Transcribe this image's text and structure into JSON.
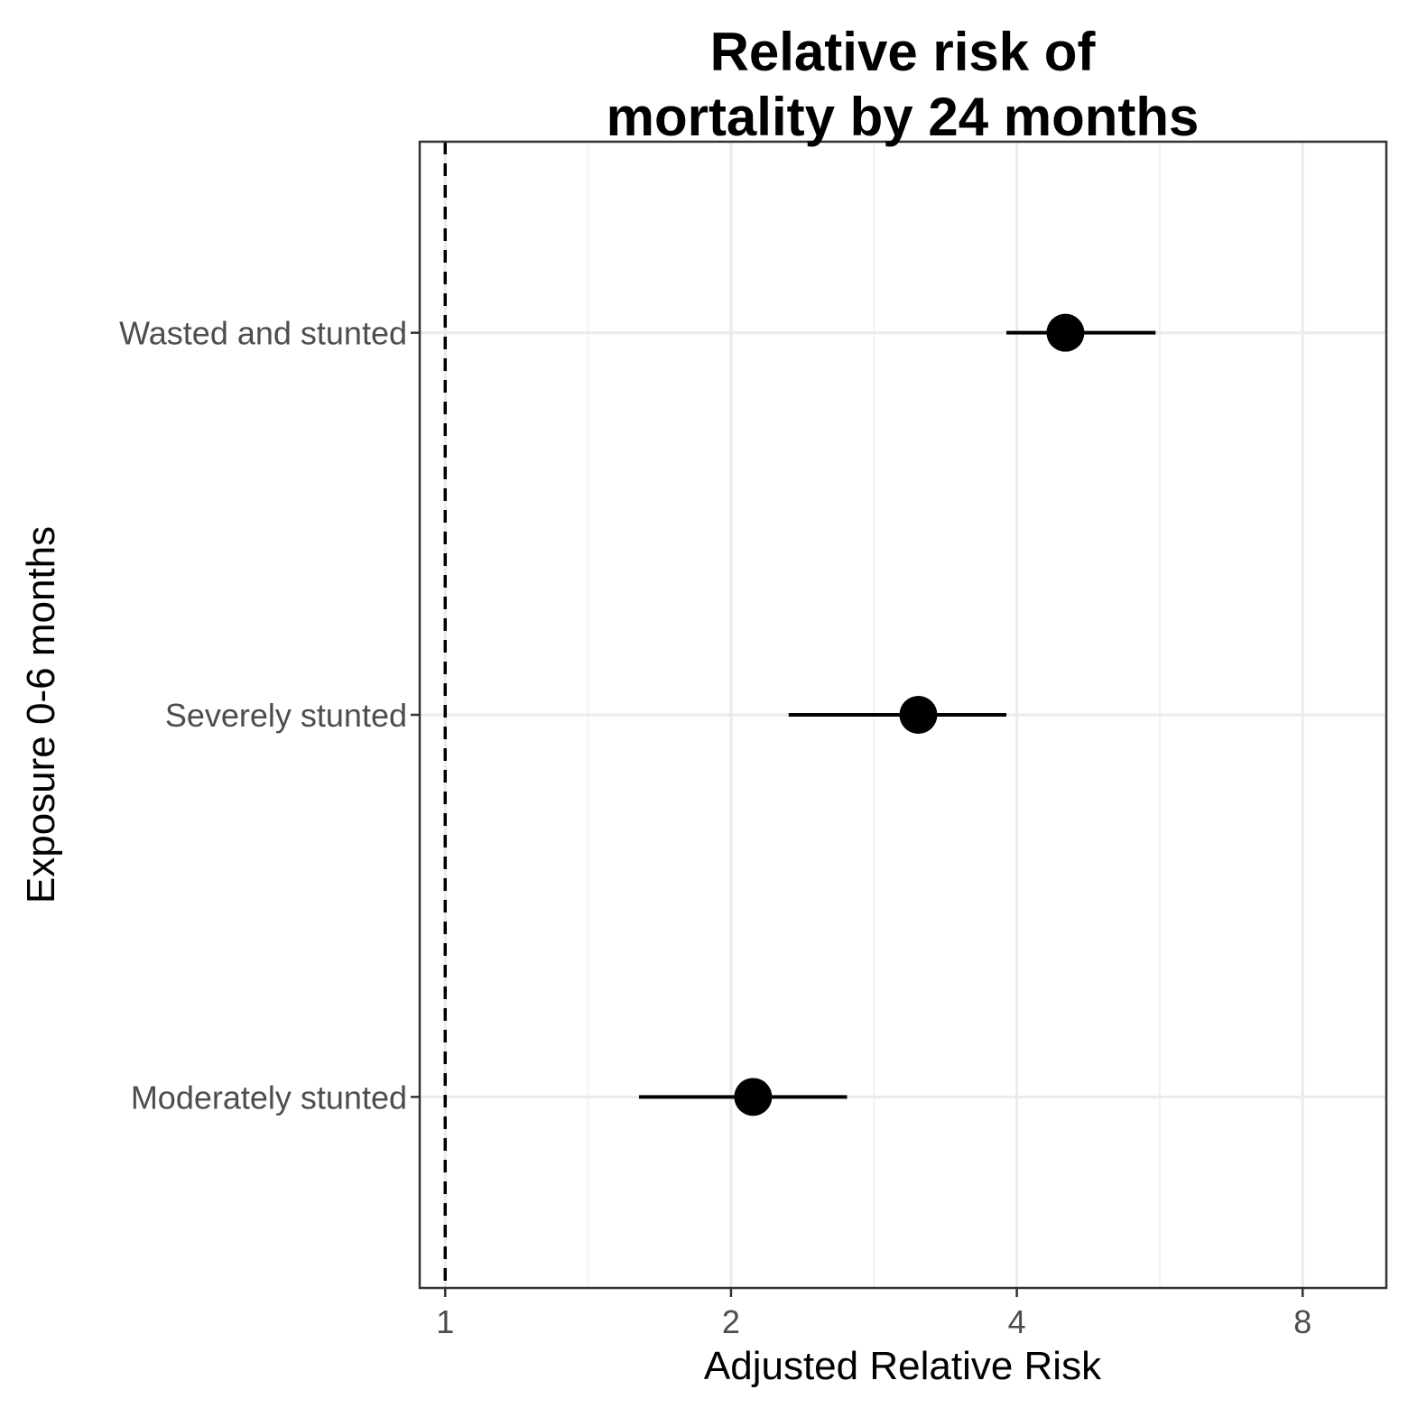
{
  "chart_data": {
    "type": "scatter",
    "title": [
      "Relative risk of",
      "mortality by 24 months"
    ],
    "xlabel": "Adjusted Relative Risk",
    "ylabel": "Exposure 0-6 months",
    "x_scale": "log2",
    "xlim": [
      0.94,
      9.8
    ],
    "x_ticks": [
      1,
      2,
      4,
      8
    ],
    "x_tick_labels": [
      "1",
      "2",
      "4",
      "8"
    ],
    "reference_line": 1,
    "grid": true,
    "colors": {
      "point": "#000000",
      "grid_major": "#ebebeb",
      "grid_minor": "#f2f2f2",
      "panel_border": "#333333",
      "tick_label": "#4d4d4d"
    },
    "categories": [
      "Wasted and stunted",
      "Severely stunted",
      "Moderately stunted"
    ],
    "series": [
      {
        "points": [
          {
            "category": "Wasted and stunted",
            "estimate": 4.5,
            "ci_lower": 3.9,
            "ci_upper": 5.6
          },
          {
            "category": "Severely stunted",
            "estimate": 3.15,
            "ci_lower": 2.3,
            "ci_upper": 3.9
          },
          {
            "category": "Moderately stunted",
            "estimate": 2.11,
            "ci_lower": 1.6,
            "ci_upper": 2.65
          }
        ]
      }
    ]
  }
}
